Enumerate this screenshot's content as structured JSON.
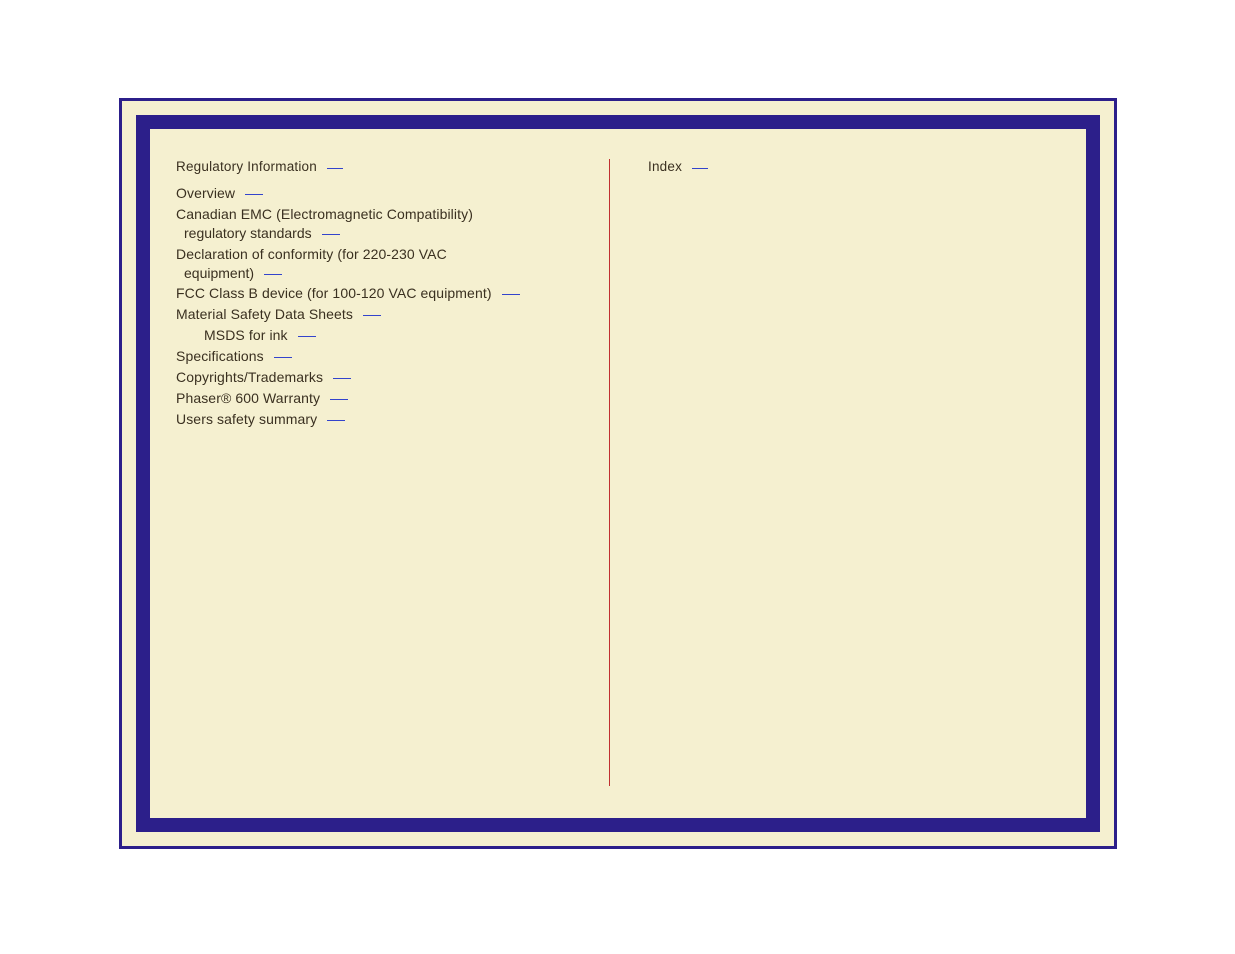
{
  "colors": {
    "frame_border": "#2c1f8a",
    "page_bg": "#f5f0d0",
    "divider": "#c03030",
    "tick": "#3344cc",
    "text": "#3a3020"
  },
  "left_column": {
    "heading": "Regulatory Information",
    "entries": [
      {
        "label": "Overview",
        "indent": 0
      },
      {
        "label": "Canadian EMC (Electromagnetic Compatibility)",
        "wrap": " regulatory standards",
        "indent": 0
      },
      {
        "label": "Declaration of conformity (for 220-230 VAC",
        "wrap": " equipment)",
        "indent": 0
      },
      {
        "label": "FCC Class B device (for 100-120 VAC equipment)",
        "indent": 0
      },
      {
        "label": "Material Safety Data Sheets",
        "indent": 0
      },
      {
        "label": "MSDS for ink",
        "indent": 1
      },
      {
        "label": "Specifications",
        "indent": 0
      },
      {
        "label": "Copyrights/Trademarks",
        "indent": 0
      },
      {
        "label": "Phaser® 600 Warranty",
        "indent": 0
      },
      {
        "label": "Users safety summary",
        "indent": 0
      }
    ]
  },
  "right_column": {
    "heading": "Index",
    "entries": []
  }
}
